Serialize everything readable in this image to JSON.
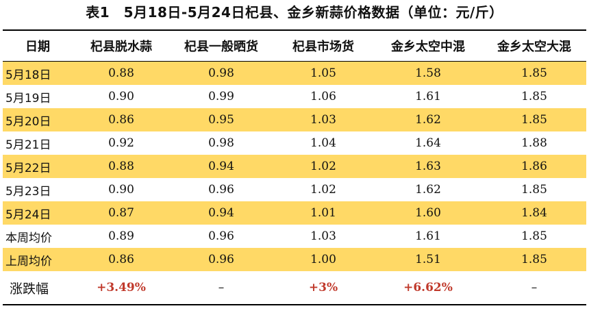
{
  "caption": "表1　5月18日-5月24日杞县、金乡新蒜价格数据（单位：元/斤）",
  "columns": [
    "日期",
    "杞县脱水蒜",
    "杞县一般晒货",
    "杞县市场货",
    "金乡太空中混",
    "金乡太空大混"
  ],
  "rows": [
    {
      "date": "5月18日",
      "values": [
        "0.88",
        "0.98",
        "1.05",
        "1.58",
        "1.85"
      ]
    },
    {
      "date": "5月19日",
      "values": [
        "0.90",
        "0.99",
        "1.06",
        "1.61",
        "1.85"
      ]
    },
    {
      "date": "5月20日",
      "values": [
        "0.86",
        "0.95",
        "1.03",
        "1.62",
        "1.85"
      ]
    },
    {
      "date": "5月21日",
      "values": [
        "0.92",
        "0.98",
        "1.04",
        "1.64",
        "1.88"
      ]
    },
    {
      "date": "5月22日",
      "values": [
        "0.88",
        "0.94",
        "1.02",
        "1.63",
        "1.86"
      ]
    },
    {
      "date": "5月23日",
      "values": [
        "0.90",
        "0.96",
        "1.02",
        "1.62",
        "1.85"
      ]
    },
    {
      "date": "5月24日",
      "values": [
        "0.87",
        "0.94",
        "1.01",
        "1.60",
        "1.84"
      ]
    },
    {
      "date": "本周均价",
      "values": [
        "0.89",
        "0.96",
        "1.03",
        "1.61",
        "1.85"
      ]
    },
    {
      "date": "上周均价",
      "values": [
        "0.86",
        "0.96",
        "1.00",
        "1.51",
        "1.85"
      ]
    }
  ],
  "change": {
    "label": "涨跌幅",
    "values": [
      "+3.49%",
      "–",
      "+3%",
      "+6.62%",
      "–"
    ]
  },
  "colors": {
    "highlight": "#ffd966",
    "positive": "#c0392b"
  }
}
